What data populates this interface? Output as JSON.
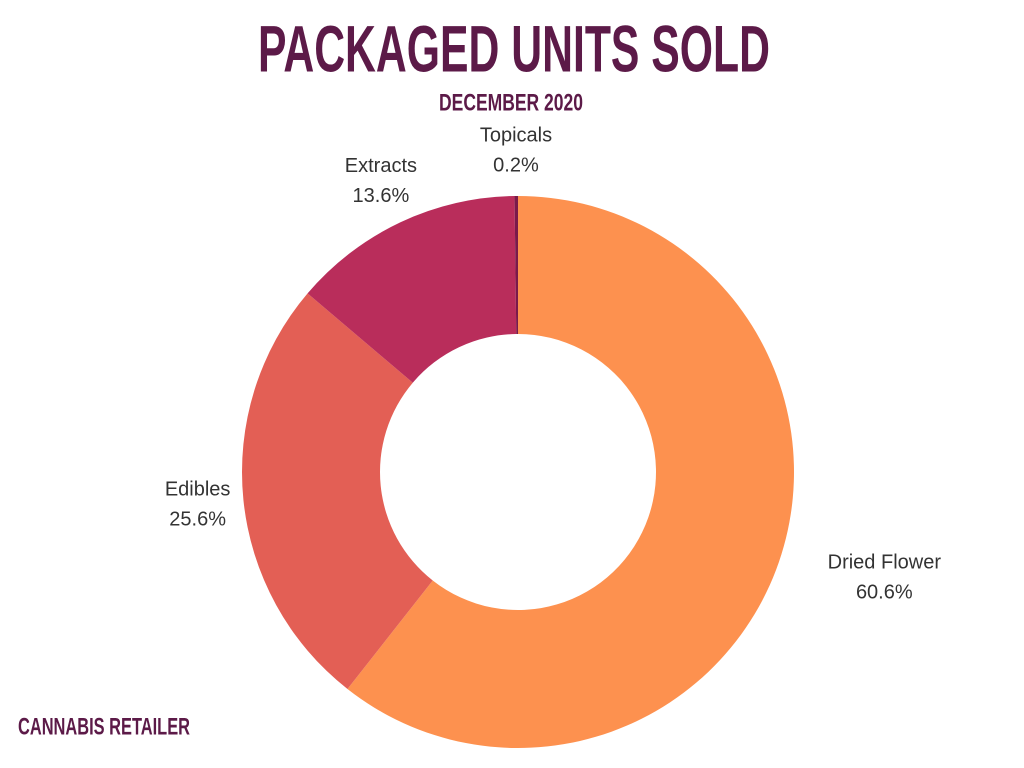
{
  "chart_data": {
    "type": "donut",
    "title": "PACKAGED UNITS SOLD",
    "subtitle": "DECEMBER 2020",
    "categories": [
      "Dried Flower",
      "Edibles",
      "Extracts",
      "Topicals"
    ],
    "values": [
      60.6,
      25.6,
      13.6,
      0.2
    ],
    "value_labels": [
      "60.6%",
      "25.6%",
      "13.6%",
      "0.2%"
    ],
    "colors": [
      "#fd914f",
      "#e35f55",
      "#b92d5b",
      "#7a1a4a"
    ],
    "source": "CANNABIS RETAILER"
  }
}
